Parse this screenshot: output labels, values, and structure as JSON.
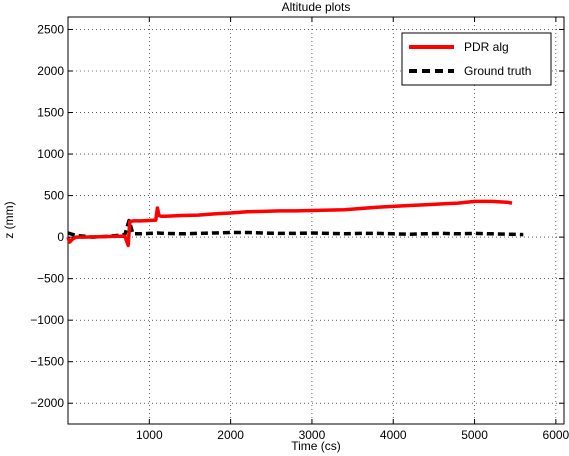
{
  "chart_data": {
    "type": "line",
    "title": "Altitude plots",
    "xlabel": "Time (cs)",
    "ylabel": "z (mm)",
    "xlim": [
      0,
      6100
    ],
    "ylim": [
      -2250,
      2650
    ],
    "xticks": [
      1000,
      2000,
      3000,
      4000,
      5000,
      6000
    ],
    "yticks": [
      -2000,
      -1500,
      -1000,
      -500,
      0,
      500,
      1000,
      1500,
      2000,
      2500
    ],
    "grid": true,
    "legend_position": "top-right",
    "series": [
      {
        "name": "PDR alg",
        "color": "#ff0000",
        "style": "solid",
        "x": [
          0,
          20,
          40,
          60,
          80,
          100,
          200,
          400,
          600,
          700,
          740,
          760,
          780,
          800,
          900,
          1000,
          1080,
          1100,
          1120,
          1150,
          1200,
          1400,
          1600,
          1800,
          2000,
          2200,
          2400,
          2600,
          2800,
          3000,
          3200,
          3400,
          3600,
          3800,
          4000,
          4200,
          4400,
          4600,
          4800,
          5000,
          5200,
          5400,
          5460
        ],
        "y": [
          0,
          -60,
          -40,
          -20,
          -10,
          0,
          0,
          5,
          10,
          10,
          -100,
          190,
          190,
          195,
          195,
          200,
          205,
          350,
          260,
          250,
          250,
          260,
          265,
          280,
          290,
          305,
          310,
          315,
          315,
          320,
          325,
          330,
          345,
          360,
          370,
          380,
          390,
          400,
          410,
          430,
          430,
          420,
          410
        ]
      },
      {
        "name": "Ground truth",
        "color": "#000000",
        "style": "dashed",
        "x": [
          0,
          100,
          200,
          300,
          400,
          500,
          600,
          700,
          750,
          800,
          900,
          1000,
          1100,
          1200,
          1400,
          1600,
          1800,
          2000,
          2200,
          2400,
          2600,
          2800,
          3000,
          3200,
          3400,
          3600,
          3800,
          4000,
          4200,
          4400,
          4600,
          4800,
          5000,
          5200,
          5400,
          5600
        ],
        "y": [
          50,
          20,
          10,
          0,
          5,
          10,
          20,
          30,
          200,
          40,
          40,
          45,
          50,
          45,
          40,
          45,
          50,
          55,
          55,
          50,
          45,
          45,
          50,
          45,
          40,
          45,
          45,
          40,
          35,
          40,
          45,
          40,
          45,
          40,
          35,
          30
        ]
      }
    ]
  }
}
